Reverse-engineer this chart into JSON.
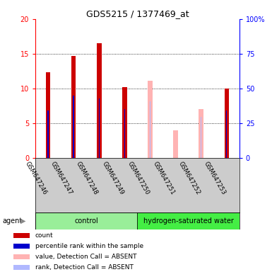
{
  "title": "GDS5215 / 1377469_at",
  "samples": [
    "GSM647246",
    "GSM647247",
    "GSM647248",
    "GSM647249",
    "GSM647250",
    "GSM647251",
    "GSM647252",
    "GSM647253"
  ],
  "count_values": [
    12.3,
    14.7,
    16.5,
    10.2,
    null,
    null,
    null,
    10.0
  ],
  "rank_values": [
    6.8,
    9.0,
    8.5,
    7.0,
    null,
    null,
    null,
    6.8
  ],
  "absent_value": [
    null,
    null,
    null,
    null,
    11.1,
    4.0,
    7.0,
    null
  ],
  "absent_rank": [
    null,
    null,
    null,
    null,
    8.1,
    null,
    5.9,
    null
  ],
  "ylim": [
    0,
    20
  ],
  "y2lim": [
    0,
    100
  ],
  "yticks": [
    0,
    5,
    10,
    15,
    20
  ],
  "y2ticks": [
    0,
    25,
    50,
    75,
    100
  ],
  "y2labels": [
    "0",
    "25",
    "50",
    "75",
    "100%"
  ],
  "color_red": "#cc0000",
  "color_blue": "#0000cc",
  "color_pink": "#ffb3b3",
  "color_lavender": "#b0b8ff",
  "group_control_color": "#99ee99",
  "group_hw_color": "#44ee44",
  "label_bg_color": "#cccccc",
  "legend_items": [
    {
      "color": "#cc0000",
      "label": "count"
    },
    {
      "color": "#0000cc",
      "label": "percentile rank within the sample"
    },
    {
      "color": "#ffb3b3",
      "label": "value, Detection Call = ABSENT"
    },
    {
      "color": "#b0b8ff",
      "label": "rank, Detection Call = ABSENT"
    }
  ]
}
